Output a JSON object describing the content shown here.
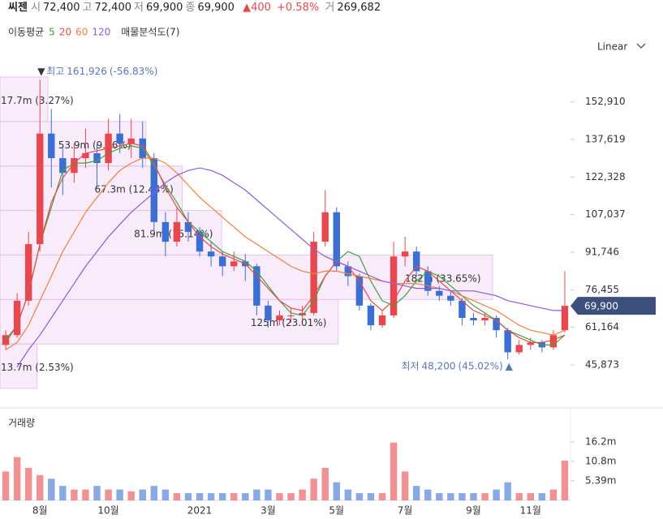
{
  "header": {
    "name": "씨젠",
    "fields": [
      {
        "label": "시",
        "value": "72,400"
      },
      {
        "label": "고",
        "value": "72,400"
      },
      {
        "label": "저",
        "value": "69,900"
      },
      {
        "label": "종",
        "value": "69,900"
      }
    ],
    "change": "▲400",
    "change_rate": "+0.58%",
    "volume_label": "거",
    "volume": "269,682"
  },
  "chart_data": {
    "type": "candlestick",
    "scale": "Linear",
    "legend_title": "이동평균",
    "up_color": "#e8474d",
    "down_color": "#3b6fd4",
    "categories": [
      null,
      null,
      null,
      "8월",
      null,
      null,
      null,
      null,
      null,
      "10월",
      null,
      null,
      null,
      null,
      null,
      null,
      null,
      "2021",
      null,
      null,
      null,
      null,
      null,
      "3월",
      null,
      null,
      null,
      null,
      null,
      "5월",
      null,
      null,
      null,
      null,
      null,
      "7월",
      null,
      null,
      null,
      null,
      null,
      "9월",
      null,
      null,
      null,
      null,
      "11월",
      null,
      null,
      null
    ],
    "open": [
      54000,
      58000,
      72000,
      95000,
      140000,
      130000,
      124000,
      130000,
      132000,
      128000,
      140000,
      136000,
      138000,
      130000,
      104000,
      96000,
      104000,
      100000,
      92000,
      90000,
      86000,
      88000,
      86000,
      70000,
      64000,
      66000,
      66000,
      67000,
      96000,
      108000,
      86000,
      82000,
      70000,
      62000,
      66000,
      90000,
      92000,
      84000,
      76000,
      74000,
      72000,
      65000,
      64000,
      65000,
      60000,
      51000,
      54000,
      55000,
      53000,
      60000
    ],
    "high": [
      60000,
      75000,
      100000,
      161926,
      150000,
      134000,
      136000,
      142000,
      136000,
      146000,
      148000,
      146000,
      145000,
      132000,
      108000,
      110000,
      108000,
      102000,
      96000,
      92000,
      92000,
      91000,
      87000,
      72000,
      68000,
      69000,
      70000,
      100000,
      117000,
      110000,
      88000,
      83000,
      71000,
      68000,
      96000,
      98000,
      94000,
      86000,
      78000,
      76000,
      73000,
      67000,
      67000,
      66000,
      61000,
      56000,
      57000,
      56000,
      60000,
      84000
    ],
    "low": [
      52000,
      57000,
      70000,
      92000,
      118000,
      115000,
      120000,
      126000,
      118000,
      125000,
      132000,
      130000,
      126000,
      100000,
      90000,
      94000,
      96000,
      90000,
      86000,
      82000,
      84000,
      80000,
      66000,
      61000,
      62000,
      63000,
      64000,
      66000,
      94000,
      84000,
      78000,
      68000,
      60000,
      61000,
      65000,
      86000,
      82000,
      74000,
      72000,
      70000,
      62000,
      62000,
      62000,
      57000,
      48200,
      50000,
      52000,
      51000,
      52000,
      59000
    ],
    "close": [
      58000,
      72000,
      95000,
      140000,
      130000,
      124000,
      130000,
      132000,
      128000,
      140000,
      136000,
      138000,
      130000,
      104000,
      96000,
      104000,
      100000,
      92000,
      90000,
      86000,
      88000,
      86000,
      70000,
      64000,
      66000,
      66000,
      67000,
      96000,
      108000,
      86000,
      82000,
      70000,
      62000,
      66000,
      90000,
      92000,
      84000,
      76000,
      74000,
      72000,
      65000,
      64000,
      65000,
      60000,
      51000,
      54000,
      55000,
      53000,
      58000,
      69900
    ],
    "moving_averages": [
      {
        "name": "5",
        "color": "#3ca43c",
        "values": [
          56000,
          62000,
          75000,
          95000,
          110000,
          125000,
          128000,
          128000,
          129000,
          132000,
          134000,
          135000,
          134000,
          127000,
          119000,
          112000,
          104000,
          100000,
          96000,
          92000,
          90000,
          88000,
          84000,
          78000,
          72000,
          67000,
          66000,
          72000,
          82000,
          88000,
          92000,
          90000,
          80000,
          72000,
          70000,
          74000,
          80000,
          84000,
          82000,
          78000,
          74000,
          70000,
          67000,
          64000,
          60000,
          58000,
          56000,
          54000,
          54000,
          58000
        ]
      },
      {
        "name": "20",
        "color": "#e8474d",
        "values": [
          55000,
          62000,
          75000,
          95000,
          112000,
          122000,
          128000,
          132000,
          133000,
          134000,
          135000,
          136000,
          135000,
          128000,
          118000,
          110000,
          104000,
          98000,
          94000,
          91000,
          89000,
          87000,
          82000,
          77000,
          72000,
          69000,
          68000,
          74000,
          82000,
          88000,
          86000,
          80000,
          72000,
          68000,
          72000,
          80000,
          86000,
          84000,
          80000,
          76000,
          72000,
          68000,
          66000,
          64000,
          60000,
          57000,
          55000,
          55000,
          56000,
          58000
        ]
      },
      {
        "name": "60",
        "color": "#f0803c",
        "values": [
          52000,
          55000,
          62000,
          72000,
          82000,
          92000,
          100000,
          108000,
          114000,
          120000,
          125000,
          128000,
          130000,
          130000,
          128000,
          124000,
          119000,
          114000,
          110000,
          106000,
          102000,
          98000,
          95000,
          92000,
          89000,
          86000,
          84000,
          83000,
          84000,
          84000,
          83000,
          82000,
          81000,
          80000,
          79000,
          79000,
          79000,
          78000,
          77000,
          76000,
          74000,
          72000,
          70000,
          68000,
          65000,
          62000,
          60000,
          59000,
          58000,
          60000
        ]
      },
      {
        "name": "120",
        "color": "#8e5bd8",
        "values": [
          null,
          45000,
          52000,
          58000,
          65000,
          72000,
          79000,
          86000,
          92000,
          98000,
          103000,
          108000,
          112000,
          116000,
          120000,
          123000,
          125000,
          126000,
          125000,
          123000,
          120000,
          117000,
          113000,
          109000,
          105000,
          101000,
          97000,
          93000,
          90000,
          88000,
          86000,
          84000,
          82000,
          80000,
          79000,
          78000,
          77000,
          77000,
          77000,
          76000,
          76000,
          76000,
          75000,
          74000,
          72000,
          71000,
          70000,
          69000,
          68000,
          68000
        ]
      }
    ],
    "ylim": [
      36300,
      163000
    ],
    "yticks": [
      {
        "value": 45873,
        "label": "45,873"
      },
      {
        "value": 61164,
        "label": "61,164"
      },
      {
        "value": 76455,
        "label": "76,455"
      },
      {
        "value": 91746,
        "label": "91,746"
      },
      {
        "value": 107037,
        "label": "107,037"
      },
      {
        "value": 122328,
        "label": "122,328"
      },
      {
        "value": 137619,
        "label": "137,619"
      },
      {
        "value": 152910,
        "label": "152,910"
      }
    ],
    "current": {
      "value": 69900,
      "label": "69,900",
      "color": "#3d4f7c"
    },
    "high_mark": {
      "label": "최고",
      "value": 161926,
      "value_label": "161,926",
      "change": "(-56.83%)"
    },
    "low_mark": {
      "label": "최저",
      "value": 48200,
      "value_label": "48,200",
      "change": "(45.02%)"
    },
    "volume_profile": {
      "title": "매물분석도(7)",
      "values": [
        17.7,
        53.9,
        67.3,
        81.9,
        182,
        125,
        13.7
      ],
      "value_labels": [
        "17.7m (3.27%)",
        "53.9m (9.96%)",
        "67.3m (12.44%)",
        "81.9m (15.14%)",
        "182m (33.65%)",
        "125m (23.01%)",
        "13.7m (2.53%)"
      ]
    },
    "volume": {
      "title": "거래량",
      "ylim": [
        0,
        24.5
      ],
      "yticks": [
        {
          "value": 5.39,
          "label": "5.39m"
        },
        {
          "value": 10.8,
          "label": "10.8m"
        },
        {
          "value": 16.2,
          "label": "16.2m"
        }
      ],
      "values": [
        8,
        12,
        9,
        7,
        6,
        4,
        3,
        3,
        4,
        3,
        3,
        2.5,
        3,
        4,
        3,
        2,
        2,
        2,
        2,
        2,
        2,
        2,
        3,
        3,
        2,
        2,
        3,
        6,
        9,
        5,
        3,
        2,
        2,
        2,
        16,
        8,
        4,
        3,
        2,
        2,
        2,
        2,
        2,
        3,
        5,
        2,
        2,
        2,
        3,
        11
      ]
    }
  }
}
